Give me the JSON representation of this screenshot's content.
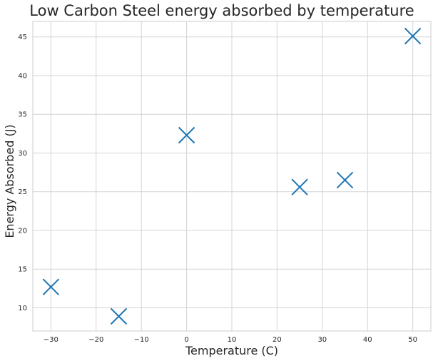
{
  "chart_data": {
    "type": "scatter",
    "title": "Low Carbon Steel energy absorbed by temperature",
    "xlabel": "Temperature (C)",
    "ylabel": "Energy Absorbed (J)",
    "xlim": [
      -34,
      54
    ],
    "ylim": [
      7,
      47
    ],
    "xticks": [
      -30,
      -20,
      -10,
      0,
      10,
      20,
      30,
      40,
      50
    ],
    "yticks": [
      10,
      15,
      20,
      25,
      30,
      35,
      40,
      45
    ],
    "grid": true,
    "marker": "x",
    "colors": {
      "series": "#1f77b4",
      "grid": "#d4d4d4",
      "frame": "#cccccc",
      "text": "#262626"
    },
    "points": [
      {
        "x": -30,
        "y": 12.7
      },
      {
        "x": -15,
        "y": 8.9
      },
      {
        "x": 0,
        "y": 32.3
      },
      {
        "x": 25,
        "y": 25.6
      },
      {
        "x": 35,
        "y": 26.5
      },
      {
        "x": 50,
        "y": 45.1
      }
    ]
  }
}
